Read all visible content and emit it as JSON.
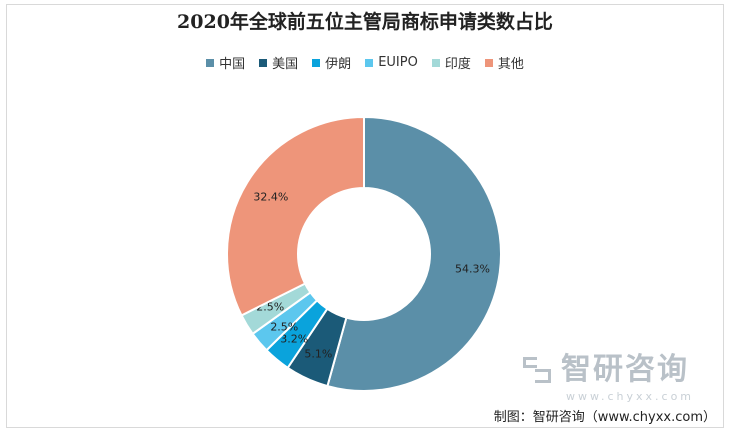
{
  "chart_data": {
    "type": "pie",
    "variant": "donut",
    "title": "2020年全球前五位主管局商标申请类数占比",
    "categories": [
      "中国",
      "美国",
      "伊朗",
      "EUIPO",
      "印度",
      "其他"
    ],
    "values": [
      54.3,
      5.1,
      3.2,
      2.5,
      2.5,
      32.4
    ],
    "labels": [
      "54.3%",
      "5.1%",
      "3.2%",
      "2.5%",
      "2.5%",
      "32.4%"
    ],
    "colors": [
      "#5b8fa8",
      "#1b5a78",
      "#0aa3dc",
      "#5cc7ee",
      "#a3d9d8",
      "#ee957a"
    ],
    "legend_position": "top"
  },
  "watermark": {
    "brand": "智研咨询",
    "url": "www.chyxx.com"
  },
  "credit": "制图：智研咨询（www.chyxx.com）"
}
